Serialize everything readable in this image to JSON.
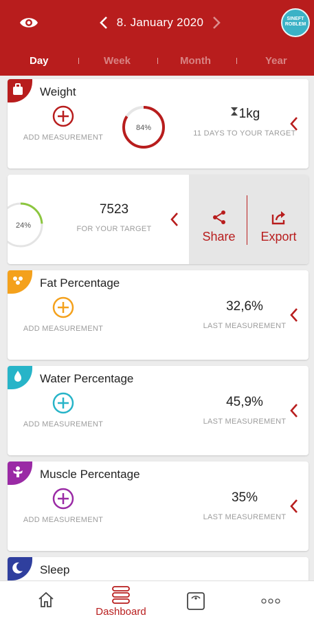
{
  "header": {
    "date": "8. January 2020",
    "logo_text": "SINEFT ROBLEM",
    "tabs": [
      "Day",
      "Week",
      "Month",
      "Year"
    ],
    "active_tab": "Day",
    "colors": {
      "primary": "#b81d1d"
    }
  },
  "weight_card": {
    "title": "Weight",
    "add_label": "ADD MEASUREMENT",
    "progress_percent": 84,
    "progress_label": "84%",
    "target_value": "1kg",
    "target_sub": "11 DAYS TO YOUR TARGET",
    "color": "#b81d1d"
  },
  "steps_card": {
    "progress_percent": 24,
    "progress_label": "24%",
    "value": "7523",
    "sub": "FOR YOUR TARGET",
    "share_label": "Share",
    "export_label": "Export",
    "ring_color": "#8cc63f"
  },
  "fat_card": {
    "title": "Fat Percentage",
    "add_label": "ADD MEASUREMENT",
    "value": "32,6%",
    "sub": "LAST MEASUREMENT",
    "color": "#f4a11c"
  },
  "water_card": {
    "title": "Water Percentage",
    "add_label": "ADD MEASUREMENT",
    "value": "45,9%",
    "sub": "LAST MEASUREMENT",
    "color": "#27b4c8"
  },
  "muscle_card": {
    "title": "Muscle Percentage",
    "add_label": "ADD MEASUREMENT",
    "value": "35%",
    "sub": "LAST MEASUREMENT",
    "color": "#9a2aa5"
  },
  "sleep_card": {
    "title": "Sleep",
    "color": "#2f3f9e"
  },
  "bottom_nav": {
    "dashboard_label": "Dashboard"
  }
}
